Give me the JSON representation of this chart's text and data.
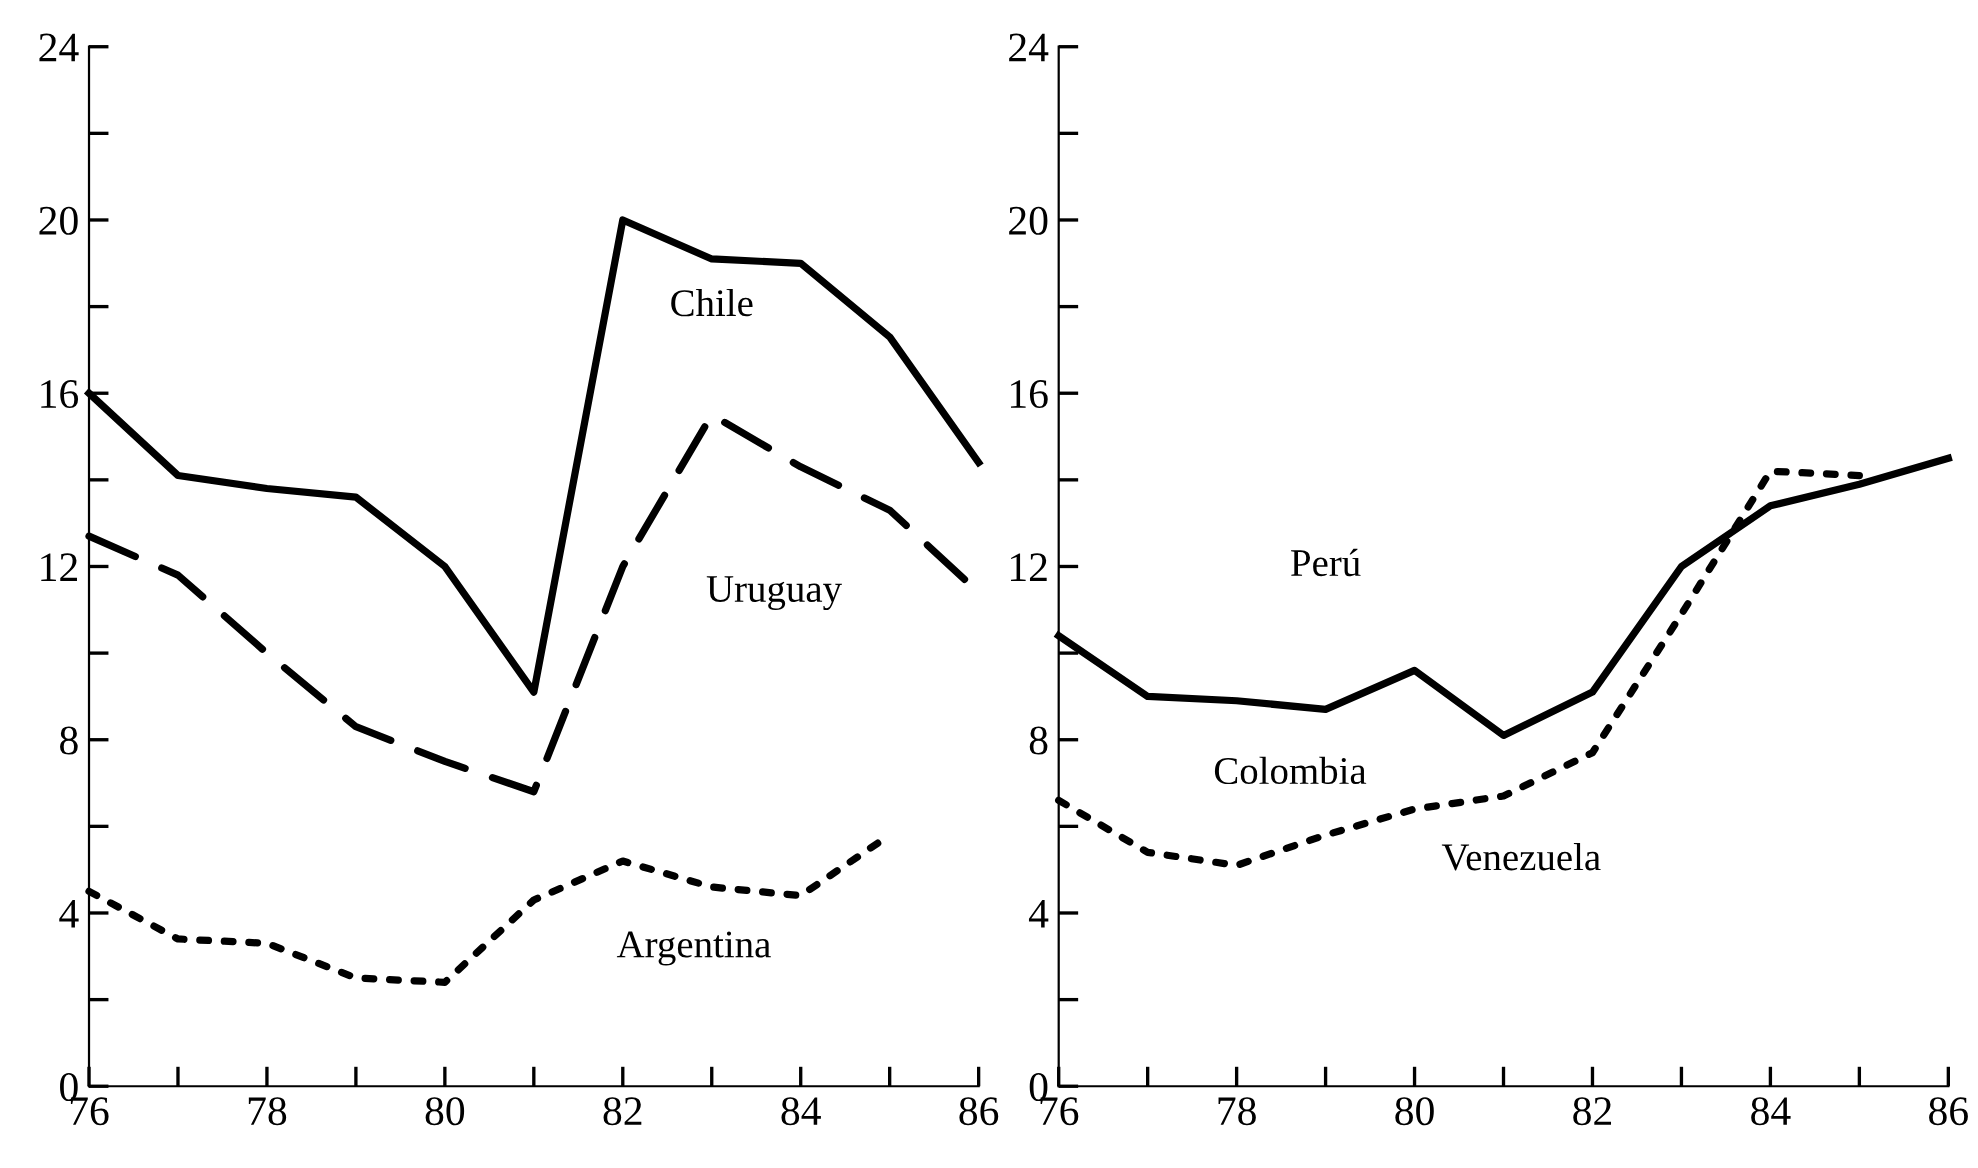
{
  "chart_data": [
    {
      "type": "line",
      "x": [
        76,
        77,
        78,
        79,
        80,
        81,
        82,
        83,
        84,
        85,
        86
      ],
      "xlim": [
        76,
        86
      ],
      "xticks": [
        76,
        {
          "value": 77,
          "label": null
        },
        78,
        {
          "value": 79,
          "label": null
        },
        80,
        {
          "value": 81,
          "label": null
        },
        82,
        {
          "value": 83,
          "label": null
        },
        84,
        {
          "value": 85,
          "label": null
        },
        86
      ],
      "ylim": [
        0,
        24
      ],
      "yticks": [
        0,
        {
          "value": 2,
          "label": null
        },
        4,
        {
          "value": 6,
          "label": null
        },
        8,
        {
          "value": 10,
          "label": null
        },
        12,
        {
          "value": 14,
          "label": null
        },
        16,
        {
          "value": 18,
          "label": null
        },
        20,
        {
          "value": 22,
          "label": null
        },
        24
      ],
      "grid": false,
      "series": [
        {
          "color": "#000000",
          "line_style": "solid",
          "values": [
            16.0,
            14.1,
            13.8,
            13.6,
            12.0,
            9.1,
            20.0,
            19.1,
            19.0,
            17.3,
            14.4
          ]
        },
        {
          "color": "#000000",
          "line_style": "dashed",
          "values": [
            12.7,
            11.8,
            10.0,
            8.3,
            7.5,
            6.8,
            12.0,
            15.5,
            14.3,
            13.3,
            11.4
          ]
        },
        {
          "color": "#000000",
          "line_style": "dotted",
          "values": [
            4.5,
            3.4,
            3.3,
            2.5,
            2.4,
            4.3,
            5.2,
            4.6,
            4.4,
            5.8,
            null
          ]
        }
      ],
      "annotations": [
        "Chile",
        "Uruguay",
        "Argentina"
      ]
    },
    {
      "type": "line",
      "x": [
        76,
        77,
        78,
        79,
        80,
        81,
        82,
        83,
        84,
        85,
        86
      ],
      "xlim": [
        76,
        86
      ],
      "xticks": [
        76,
        {
          "value": 77,
          "label": null
        },
        78,
        {
          "value": 79,
          "label": null
        },
        80,
        {
          "value": 81,
          "label": null
        },
        82,
        {
          "value": 83,
          "label": null
        },
        84,
        {
          "value": 85,
          "label": null
        },
        86
      ],
      "ylim": [
        0,
        24
      ],
      "yticks": [
        0,
        {
          "value": 2,
          "label": null
        },
        4,
        {
          "value": 6,
          "label": null
        },
        8,
        {
          "value": 10,
          "label": null
        },
        12,
        {
          "value": 14,
          "label": null
        },
        16,
        {
          "value": 18,
          "label": null
        },
        20,
        {
          "value": 22,
          "label": null
        },
        24
      ],
      "grid": false,
      "series": [
        {
          "color": "#000000",
          "line_style": "solid",
          "values": [
            10.4,
            9.0,
            8.9,
            8.7,
            9.6,
            8.1,
            9.1,
            12.0,
            13.4,
            13.9,
            14.5
          ]
        },
        {
          "color": "#000000",
          "line_style": "dotted",
          "values": [
            6.6,
            5.4,
            5.1,
            5.8,
            6.4,
            6.7,
            7.7,
            10.9,
            14.2,
            14.1,
            null
          ]
        }
      ],
      "annotations": [
        "Perú",
        "Colombia",
        "Venezuela"
      ]
    }
  ]
}
